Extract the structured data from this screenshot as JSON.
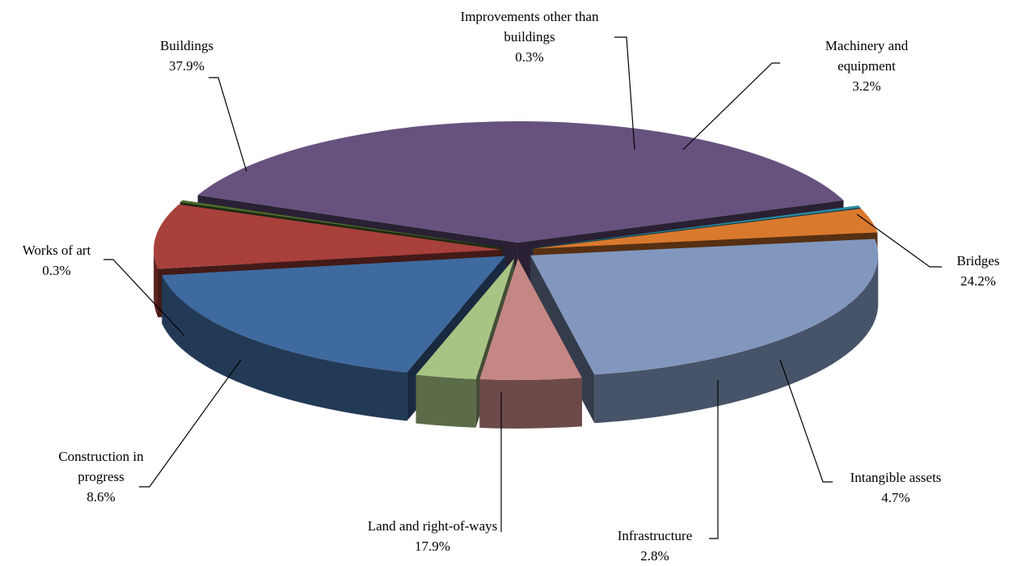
{
  "chart_data": {
    "type": "pie",
    "title": "",
    "slices": [
      {
        "name": "Buildings",
        "value": 37.9,
        "label": "37.9%",
        "color": "#67527f"
      },
      {
        "name": "Improvements other than buildings",
        "value": 0.3,
        "label": "0.3%",
        "color": "#2b8aa0"
      },
      {
        "name": "Machinery and equipment",
        "value": 3.2,
        "label": "3.2%",
        "color": "#d9792e"
      },
      {
        "name": "Bridges",
        "value": 24.2,
        "label": "24.2%",
        "color": "#8197bd"
      },
      {
        "name": "Intangible assets",
        "value": 4.7,
        "label": "4.7%",
        "color": "#c48784"
      },
      {
        "name": "Infrastructure",
        "value": 2.8,
        "label": "2.8%",
        "color": "#a8c485"
      },
      {
        "name": "Land and right-of-ways",
        "value": 17.9,
        "label": "17.9%",
        "color": "#3f6a9f"
      },
      {
        "name": "Construction in progress",
        "value": 8.6,
        "label": "8.6%",
        "color": "#a8403c"
      },
      {
        "name": "Works of art",
        "value": 0.3,
        "label": "0.3%",
        "color": "#4e6a2e"
      }
    ],
    "legend": "none",
    "style": "3d-exploded"
  }
}
